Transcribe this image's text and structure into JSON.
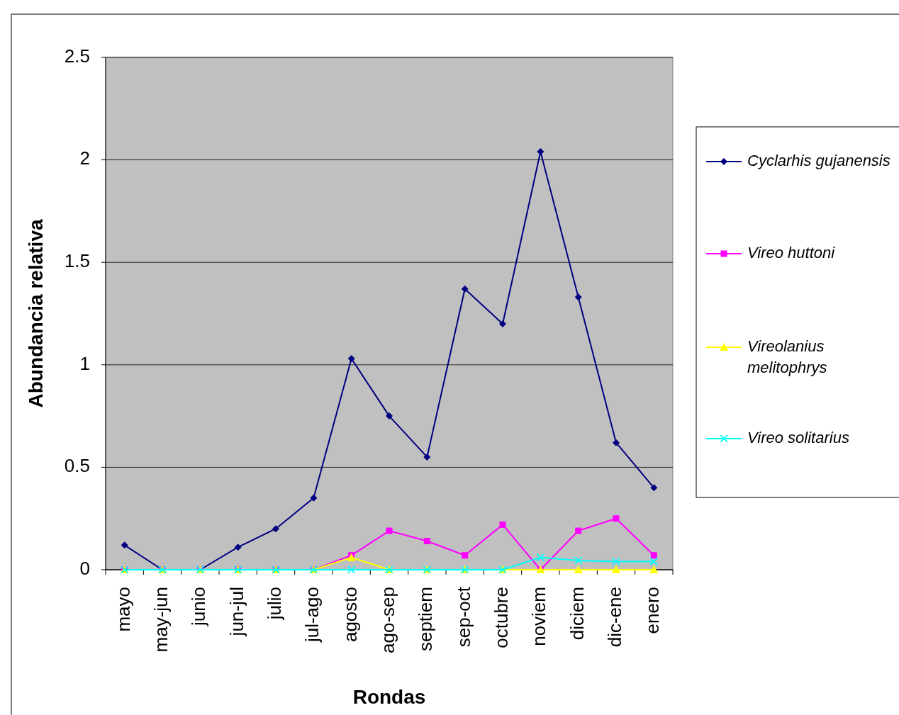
{
  "chart_data": {
    "type": "line",
    "xlabel": "Rondas",
    "ylabel": "Abundancia relativa",
    "categories": [
      "mayo",
      "may-jun",
      "junio",
      "jun-jul",
      "julio",
      "jul-ago",
      "agosto",
      "ago-sep",
      "septiem",
      "sep-oct",
      "octubre",
      "noviem",
      "diciem",
      "dic-ene",
      "enero"
    ],
    "series": [
      {
        "name": "Cyclarhis gujanensis",
        "color": "#000080",
        "marker": "diamond",
        "values": [
          0.12,
          0,
          0,
          0.11,
          0.2,
          0.35,
          1.03,
          0.75,
          0.55,
          1.37,
          1.2,
          2.04,
          1.33,
          0.62,
          0.4
        ]
      },
      {
        "name": "Vireo huttoni",
        "color": "#ff00ff",
        "marker": "square",
        "values": [
          0,
          0,
          0,
          0,
          0,
          0,
          0.07,
          0.19,
          0.14,
          0.07,
          0.22,
          0,
          0.19,
          0.25,
          0.07
        ]
      },
      {
        "name": "Vireolanius melitophrys",
        "color": "#ffff00",
        "marker": "triangle",
        "values": [
          0,
          0,
          0,
          0,
          0,
          0,
          0.06,
          0,
          0,
          0,
          0,
          0,
          0,
          0,
          0
        ]
      },
      {
        "name": "Vireo solitarius",
        "color": "#00ffff",
        "marker": "cross",
        "values": [
          0,
          0,
          0,
          0,
          0,
          0,
          0,
          0,
          0,
          0,
          0,
          0.06,
          0.045,
          0.04,
          0.04
        ]
      }
    ],
    "ylim": [
      0,
      2.5
    ],
    "yticks": [
      0,
      0.5,
      1,
      1.5,
      2,
      2.5
    ],
    "grid": "y",
    "legend": "right"
  }
}
